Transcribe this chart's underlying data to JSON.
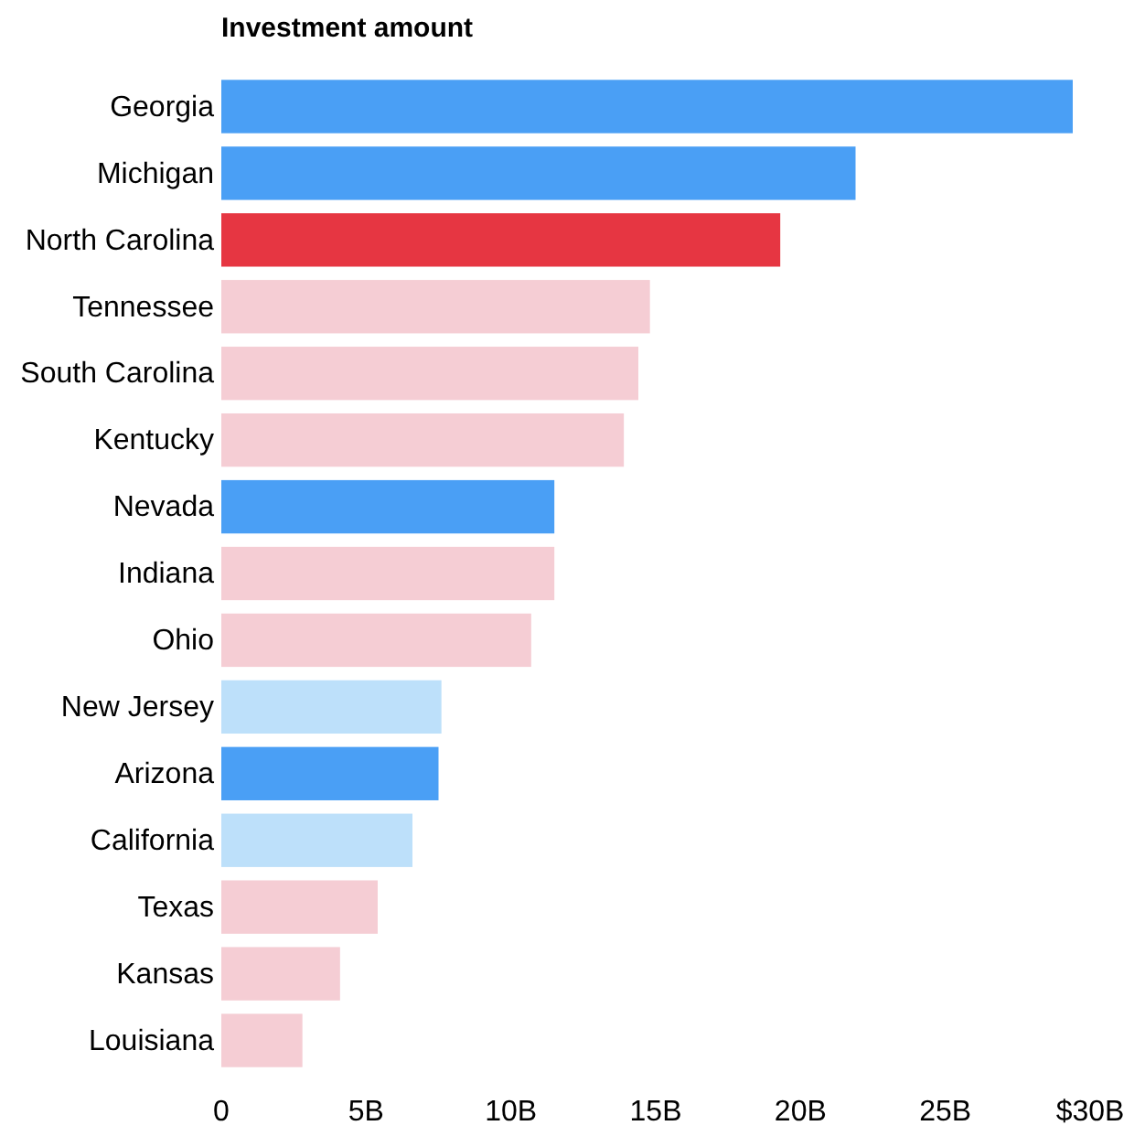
{
  "chart_data": {
    "type": "bar",
    "orientation": "horizontal",
    "title": "Investment amount",
    "categories": [
      "Georgia",
      "Michigan",
      "North Carolina",
      "Tennessee",
      "South Carolina",
      "Kentucky",
      "Nevada",
      "Indiana",
      "Ohio",
      "New Jersey",
      "Arizona",
      "California",
      "Texas",
      "Kansas",
      "Louisiana"
    ],
    "values": [
      29.4,
      21.9,
      19.3,
      14.8,
      14.4,
      13.9,
      11.5,
      11.5,
      10.7,
      7.6,
      7.5,
      6.6,
      5.4,
      4.1,
      2.8
    ],
    "colors": [
      "#4a9ff5",
      "#4a9ff5",
      "#e63642",
      "#f5cdd4",
      "#f5cdd4",
      "#f5cdd4",
      "#4a9ff5",
      "#f5cdd4",
      "#f5cdd4",
      "#bde0fa",
      "#4a9ff5",
      "#bde0fa",
      "#f5cdd4",
      "#f5cdd4",
      "#f5cdd4"
    ],
    "xlim": [
      0,
      30
    ],
    "xticks": [
      0,
      {
        "value": 5,
        "label": "5B"
      },
      {
        "value": 10,
        "label": "10B"
      },
      {
        "value": 15,
        "label": "15B"
      },
      {
        "value": 20,
        "label": "20B"
      },
      {
        "value": 25,
        "label": "25B"
      },
      {
        "value": 30,
        "label": "$30B"
      }
    ],
    "grid": false
  }
}
